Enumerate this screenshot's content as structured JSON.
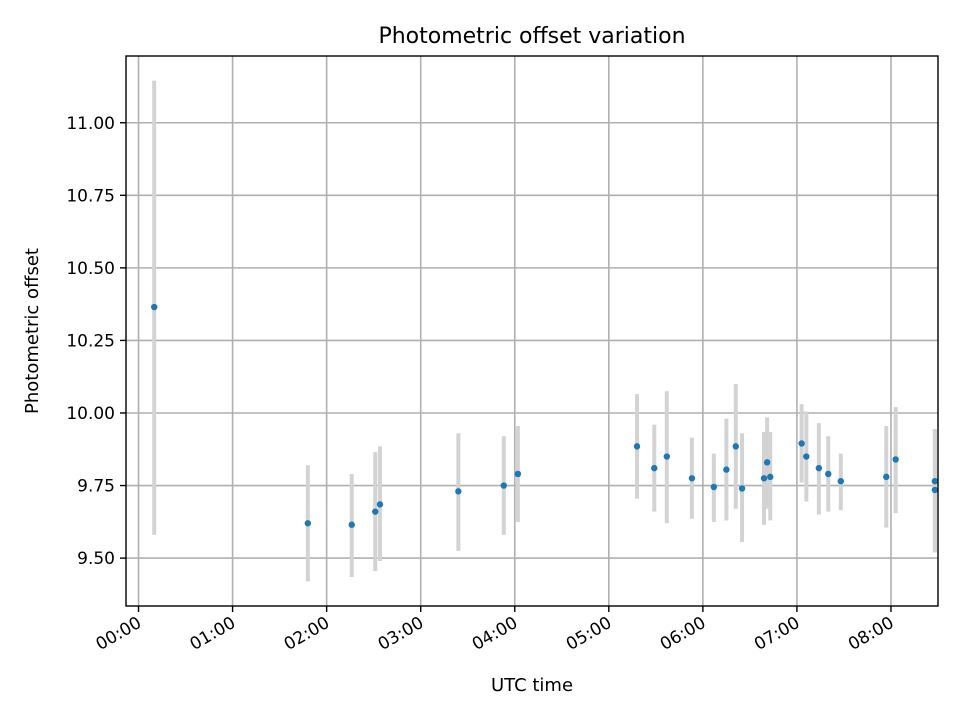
{
  "chart_data": {
    "type": "scatter",
    "title": "Photometric offset variation",
    "xlabel": "UTC time",
    "ylabel": "Photometric offset",
    "x_axis_type": "time",
    "x_ticks": [
      "00:00",
      "01:00",
      "02:00",
      "03:00",
      "04:00",
      "05:00",
      "06:00",
      "07:00",
      "08:00"
    ],
    "y_ticks": [
      "9.50",
      "9.75",
      "10.00",
      "10.25",
      "10.50",
      "10.75",
      "11.00"
    ],
    "xlim": [
      "-00:08",
      "08:30"
    ],
    "ylim": [
      9.335,
      11.23
    ],
    "grid": true,
    "legend": "none",
    "colors": {
      "point": "#1f77b4",
      "errorbar": "#d3d3d3",
      "grid": "#b0b0b0"
    },
    "series": [
      {
        "points": [
          {
            "x": "00:10",
            "y": 10.365,
            "lo": 9.58,
            "hi": 11.145
          },
          {
            "x": "01:48",
            "y": 9.62,
            "lo": 9.42,
            "hi": 9.82
          },
          {
            "x": "02:16",
            "y": 9.615,
            "lo": 9.435,
            "hi": 9.79
          },
          {
            "x": "02:31",
            "y": 9.66,
            "lo": 9.455,
            "hi": 9.865
          },
          {
            "x": "02:34",
            "y": 9.685,
            "lo": 9.49,
            "hi": 9.885
          },
          {
            "x": "03:24",
            "y": 9.73,
            "lo": 9.525,
            "hi": 9.93
          },
          {
            "x": "03:53",
            "y": 9.75,
            "lo": 9.58,
            "hi": 9.92
          },
          {
            "x": "04:02",
            "y": 9.79,
            "lo": 9.625,
            "hi": 9.955
          },
          {
            "x": "05:18",
            "y": 9.885,
            "lo": 9.705,
            "hi": 10.065
          },
          {
            "x": "05:29",
            "y": 9.81,
            "lo": 9.66,
            "hi": 9.96
          },
          {
            "x": "05:37",
            "y": 9.85,
            "lo": 9.62,
            "hi": 10.075
          },
          {
            "x": "05:53",
            "y": 9.775,
            "lo": 9.635,
            "hi": 9.915
          },
          {
            "x": "06:07",
            "y": 9.745,
            "lo": 9.625,
            "hi": 9.86
          },
          {
            "x": "06:15",
            "y": 9.805,
            "lo": 9.63,
            "hi": 9.98
          },
          {
            "x": "06:21",
            "y": 9.885,
            "lo": 9.67,
            "hi": 10.1
          },
          {
            "x": "06:25",
            "y": 9.74,
            "lo": 9.555,
            "hi": 9.93
          },
          {
            "x": "06:39",
            "y": 9.775,
            "lo": 9.615,
            "hi": 9.935
          },
          {
            "x": "06:41",
            "y": 9.83,
            "lo": 9.67,
            "hi": 9.985
          },
          {
            "x": "06:43",
            "y": 9.78,
            "lo": 9.63,
            "hi": 9.935
          },
          {
            "x": "07:03",
            "y": 9.895,
            "lo": 9.76,
            "hi": 10.03
          },
          {
            "x": "07:06",
            "y": 9.85,
            "lo": 9.695,
            "hi": 10.005
          },
          {
            "x": "07:14",
            "y": 9.81,
            "lo": 9.65,
            "hi": 9.965
          },
          {
            "x": "07:20",
            "y": 9.79,
            "lo": 9.66,
            "hi": 9.92
          },
          {
            "x": "07:28",
            "y": 9.765,
            "lo": 9.665,
            "hi": 9.86
          },
          {
            "x": "07:57",
            "y": 9.78,
            "lo": 9.605,
            "hi": 9.955
          },
          {
            "x": "08:03",
            "y": 9.84,
            "lo": 9.655,
            "hi": 10.02
          },
          {
            "x": "08:28",
            "y": 9.765,
            "lo": 9.52,
            "hi": 9.945
          },
          {
            "x": "08:28",
            "y": 9.735,
            "lo": 9.52,
            "hi": 9.945
          }
        ]
      }
    ]
  }
}
